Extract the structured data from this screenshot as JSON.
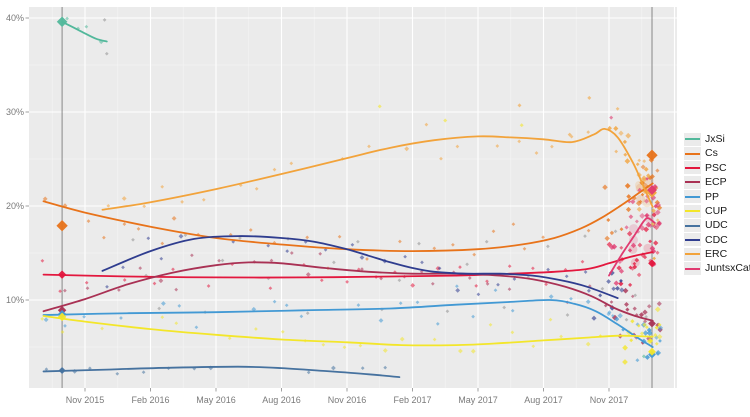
{
  "chart_data": {
    "type": "scatter",
    "subtype": "poll-tracker-with-smoothed-trend-lines",
    "title": "",
    "x_axis": {
      "unit": "months since Nov 2015",
      "ticks": [
        {
          "t": 0,
          "label": "Nov 2015"
        },
        {
          "t": 3,
          "label": "Feb 2016"
        },
        {
          "t": 6,
          "label": "May 2016"
        },
        {
          "t": 9,
          "label": "Aug 2016"
        },
        {
          "t": 12,
          "label": "Nov 2016"
        },
        {
          "t": 15,
          "label": "Feb 2017"
        },
        {
          "t": 18,
          "label": "May 2017"
        },
        {
          "t": 21,
          "label": "Aug 2017"
        },
        {
          "t": 24,
          "label": "Nov 2017"
        }
      ]
    },
    "y_axis": {
      "unit": "%",
      "ticks": [
        {
          "v": 10,
          "label": "10%"
        },
        {
          "v": 20,
          "label": "20%"
        },
        {
          "v": 30,
          "label": "30%"
        },
        {
          "v": 40,
          "label": "40%"
        }
      ],
      "minor": [
        5,
        15,
        25,
        35
      ],
      "range": [
        0.6,
        41
      ]
    },
    "events": [
      {
        "name": "election-sep-2015",
        "t": -1.05
      },
      {
        "name": "election-dec-2017",
        "t": 25.97
      }
    ],
    "style": {
      "panel_bg": "#ebebeb",
      "grid_major": "#ffffff",
      "grid_minor": "#f5f5f5",
      "event_line": "#606060",
      "axis_text": "#7a7a7a",
      "other_gray": "#8f8f8f"
    },
    "series": [
      {
        "name": "JxSi",
        "color": "#52b89b",
        "trend": [
          [
            -1.05,
            39.6
          ],
          [
            -0.2,
            38.6
          ],
          [
            0.5,
            37.8
          ],
          [
            1.0,
            37.5
          ]
        ],
        "result_2015": 39.6,
        "result_2017": null,
        "scatter": {
          "step": 0.5,
          "jitter": 1.2,
          "endN": 0
        }
      },
      {
        "name": "Cs",
        "color": "#e8731a",
        "trend": [
          [
            -1.9,
            20.5
          ],
          [
            0,
            19.3
          ],
          [
            3,
            17.8
          ],
          [
            6,
            16.6
          ],
          [
            9,
            15.9
          ],
          [
            12,
            15.4
          ],
          [
            15,
            15.2
          ],
          [
            18,
            15.4
          ],
          [
            20,
            15.9
          ],
          [
            21.5,
            16.6
          ],
          [
            22.7,
            17.6
          ],
          [
            23.7,
            18.8
          ],
          [
            24.7,
            20.3
          ],
          [
            25.5,
            21.6
          ],
          [
            26,
            22.4
          ]
        ],
        "result_2015": 17.9,
        "result_2017": 25.4,
        "scatter": {
          "step": 0.85,
          "jitter": 1.1,
          "endStart": 23.3,
          "endN": 26,
          "endJitter": 1.9,
          "halo": true
        }
      },
      {
        "name": "PSC",
        "color": "#e3173e",
        "trend": [
          [
            -1.9,
            12.7
          ],
          [
            2,
            12.5
          ],
          [
            6,
            12.4
          ],
          [
            10,
            12.4
          ],
          [
            14,
            12.5
          ],
          [
            17,
            12.6
          ],
          [
            19.5,
            12.8
          ],
          [
            21.5,
            13.0
          ],
          [
            23,
            13.3
          ],
          [
            24,
            13.9
          ],
          [
            25,
            14.6
          ],
          [
            26,
            15.1
          ]
        ],
        "result_2015": 12.7,
        "result_2017": 13.9,
        "scatter": {
          "step": 0.85,
          "jitter": 0.9,
          "endStart": 23.3,
          "endN": 24,
          "endJitter": 1.5,
          "halo": true
        }
      },
      {
        "name": "ECP",
        "color": "#a93154",
        "trend": [
          [
            -1.9,
            8.8
          ],
          [
            0,
            10.1
          ],
          [
            2,
            11.7
          ],
          [
            4,
            12.9
          ],
          [
            6,
            13.7
          ],
          [
            7.5,
            14.0
          ],
          [
            9,
            13.9
          ],
          [
            11,
            13.4
          ],
          [
            13,
            13.0
          ],
          [
            15,
            12.8
          ],
          [
            17,
            12.8
          ],
          [
            19,
            12.6
          ],
          [
            20.5,
            12.2
          ],
          [
            22,
            11.4
          ],
          [
            23.2,
            10.4
          ],
          [
            24.3,
            9.1
          ],
          [
            25.2,
            8.3
          ],
          [
            26,
            7.8
          ]
        ],
        "result_2015": 8.9,
        "result_2017": 7.5,
        "scatter": {
          "step": 0.85,
          "jitter": 1.0,
          "endStart": 23.3,
          "endN": 22,
          "endJitter": 1.6
        }
      },
      {
        "name": "PP",
        "color": "#4299d4",
        "trend": [
          [
            -1.9,
            8.4
          ],
          [
            2,
            8.6
          ],
          [
            6,
            8.7
          ],
          [
            10,
            8.9
          ],
          [
            14,
            9.1
          ],
          [
            17,
            9.5
          ],
          [
            19.5,
            9.8
          ],
          [
            21.3,
            10.0
          ],
          [
            22.4,
            9.6
          ],
          [
            23.4,
            8.8
          ],
          [
            24.4,
            7.4
          ],
          [
            25.3,
            6.0
          ],
          [
            26,
            5.0
          ]
        ],
        "result_2015": 8.5,
        "result_2017": 4.2,
        "scatter": {
          "step": 0.85,
          "jitter": 0.85,
          "endStart": 23.3,
          "endN": 18,
          "endJitter": 1.3
        }
      },
      {
        "name": "CUP",
        "color": "#f3e62a",
        "trend": [
          [
            -1.9,
            8.3
          ],
          [
            0,
            7.7
          ],
          [
            3,
            6.9
          ],
          [
            6,
            6.3
          ],
          [
            9,
            5.8
          ],
          [
            12,
            5.5
          ],
          [
            14.5,
            5.2
          ],
          [
            17,
            5.2
          ],
          [
            19,
            5.4
          ],
          [
            21,
            5.7
          ],
          [
            23,
            6.0
          ],
          [
            24.5,
            6.2
          ],
          [
            26,
            6.1
          ]
        ],
        "result_2015": 8.2,
        "result_2017": 4.5,
        "scatter": {
          "step": 0.85,
          "jitter": 0.8,
          "endStart": 23.3,
          "endN": 18,
          "endJitter": 1.2
        }
      },
      {
        "name": "UDC",
        "color": "#46729f",
        "trend": [
          [
            -1.9,
            2.4
          ],
          [
            1,
            2.6
          ],
          [
            4,
            2.8
          ],
          [
            7,
            2.9
          ],
          [
            9,
            2.75
          ],
          [
            11,
            2.45
          ],
          [
            13,
            2.1
          ],
          [
            14.4,
            1.8
          ]
        ],
        "result_2015": 2.5,
        "result_2017": null,
        "scatter": {
          "step": 1.1,
          "jitter": 0.4,
          "endN": 0
        }
      },
      {
        "name": "CDC",
        "color": "#2f3d8f",
        "trend": [
          [
            0.8,
            13.1
          ],
          [
            3,
            15.2
          ],
          [
            5,
            16.5
          ],
          [
            7,
            16.8
          ],
          [
            9,
            16.6
          ],
          [
            10.5,
            16.2
          ],
          [
            12,
            15.4
          ],
          [
            13,
            14.7
          ],
          [
            14,
            14.0
          ],
          [
            15,
            13.4
          ],
          [
            16,
            13.0
          ],
          [
            17.5,
            12.8
          ],
          [
            19,
            12.8
          ],
          [
            20.5,
            12.6
          ],
          [
            21.8,
            12.1
          ],
          [
            23,
            11.4
          ],
          [
            24.4,
            10.2
          ]
        ],
        "result_2015": null,
        "result_2017": null,
        "scatter": {
          "step": 0.85,
          "jitter": 1.1,
          "endStart": 22.3,
          "endN": 10,
          "endJitter": 1.3,
          "endMax": 24.6
        }
      },
      {
        "name": "ERC",
        "color": "#f2a33b",
        "trend": [
          [
            0.8,
            19.6
          ],
          [
            3,
            20.4
          ],
          [
            6,
            21.8
          ],
          [
            9,
            23.4
          ],
          [
            12,
            25.1
          ],
          [
            14,
            26.2
          ],
          [
            16,
            27.0
          ],
          [
            18,
            27.4
          ],
          [
            19.5,
            27.3
          ],
          [
            21,
            27.1
          ],
          [
            22.3,
            26.8
          ],
          [
            23.3,
            27.6
          ],
          [
            23.8,
            28.2
          ],
          [
            24.4,
            27.3
          ],
          [
            25.1,
            24.6
          ],
          [
            25.6,
            22.0
          ],
          [
            26,
            19.9
          ]
        ],
        "result_2015": null,
        "result_2017": 21.4,
        "scatter": {
          "step": 0.85,
          "jitter": 1.2,
          "endStart": 23.3,
          "endN": 26,
          "endJitter": 2.1,
          "halo": true
        }
      },
      {
        "name": "JuntsxCat",
        "color": "#e03a70",
        "trend": [
          [
            24.0,
            12.6
          ],
          [
            24.6,
            14.9
          ],
          [
            25.2,
            17.0
          ],
          [
            25.6,
            18.4
          ],
          [
            25.8,
            18.7
          ],
          [
            26.1,
            18.2
          ]
        ],
        "result_2015": null,
        "result_2017": 21.7,
        "scatter": {
          "step": 0,
          "jitter": 0,
          "endStart": 23.9,
          "endN": 34,
          "endJitter": 2.1,
          "halo": true
        }
      }
    ],
    "other_points": [
      [
        0.9,
        39.8
      ],
      [
        1.0,
        36.2
      ],
      [
        2.2,
        16.4
      ],
      [
        2.8,
        12.6
      ],
      [
        3.4,
        9.1
      ],
      [
        4.6,
        16.9
      ],
      [
        5.5,
        8.7
      ],
      [
        6.3,
        14.2
      ],
      [
        7.1,
        16.6
      ],
      [
        8.4,
        12.3
      ],
      [
        9.3,
        16.5
      ],
      [
        10.2,
        8.6
      ],
      [
        11.4,
        14.0
      ],
      [
        12.5,
        16.2
      ],
      [
        13.6,
        9.0
      ],
      [
        14.4,
        12.1
      ],
      [
        15.3,
        16.0
      ],
      [
        16.6,
        8.8
      ],
      [
        17.5,
        13.8
      ],
      [
        18.4,
        16.2
      ],
      [
        19.2,
        9.2
      ],
      [
        20.3,
        12.4
      ],
      [
        21.2,
        15.7
      ],
      [
        22.1,
        8.4
      ],
      [
        22.9,
        16.8
      ],
      [
        23.7,
        11.2
      ],
      [
        24.3,
        17.3
      ],
      [
        24.8,
        7.9
      ],
      [
        25.2,
        10.5
      ],
      [
        25.7,
        8.2
      ]
    ],
    "outlier_points": [
      {
        "t": 13.5,
        "v": 30.6,
        "series": "CUP"
      },
      {
        "t": 16.5,
        "v": 29.1,
        "series": "CUP"
      },
      {
        "t": 19.9,
        "v": 30.7,
        "series": "ERC"
      },
      {
        "t": 20.0,
        "v": 28.6,
        "series": "CUP"
      },
      {
        "t": 22.2,
        "v": 27.6,
        "series": "ERC"
      },
      {
        "t": 23.1,
        "v": 31.5,
        "series": "ERC"
      },
      {
        "t": 24.1,
        "v": 29.4,
        "series": "JuntsxCat"
      },
      {
        "t": 25.6,
        "v": 4.0,
        "series": "JxSi"
      },
      {
        "t": 25.9,
        "v": 4.5,
        "series": "CUP"
      },
      {
        "t": 25.3,
        "v": 3.6,
        "series": "PP"
      }
    ],
    "legend_position": "right"
  }
}
